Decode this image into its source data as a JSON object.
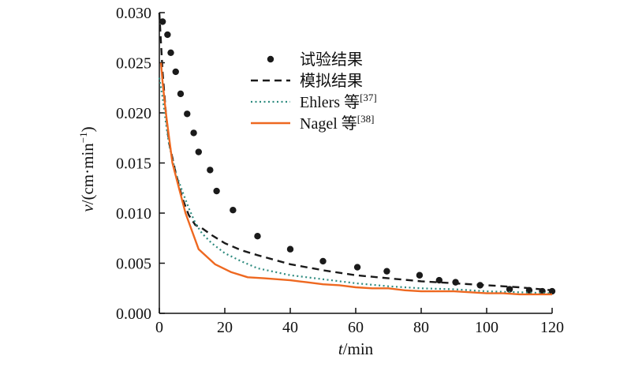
{
  "chart_data": {
    "type": "line",
    "xlabel": {
      "var": "t",
      "unit": "/min"
    },
    "ylabel": {
      "var": "v",
      "unit": "/(cm·min",
      "sup": "−1",
      "close": ")"
    },
    "xlim": [
      0,
      120
    ],
    "ylim": [
      0,
      0.03
    ],
    "xticks": [
      "0",
      "20",
      "40",
      "60",
      "80",
      "100",
      "120"
    ],
    "yticks": [
      "0.000",
      "0.005",
      "0.010",
      "0.015",
      "0.020",
      "0.025",
      "0.030"
    ],
    "grid": false,
    "legend_position": "top-center",
    "series": [
      {
        "name": "试验结果",
        "style": "markers",
        "color": "#1a1a1a",
        "x": [
          1,
          2.5,
          3.5,
          5,
          6.5,
          8.5,
          10.5,
          12,
          15.5,
          17.5,
          22.5,
          30,
          40,
          50,
          60.5,
          69.5,
          79.5,
          85.5,
          90.5,
          98,
          107,
          113,
          117,
          120
        ],
        "y": [
          0.0291,
          0.0278,
          0.026,
          0.0241,
          0.0219,
          0.0199,
          0.018,
          0.0161,
          0.0143,
          0.0122,
          0.0103,
          0.0077,
          0.0064,
          0.0052,
          0.0046,
          0.0042,
          0.0038,
          0.0033,
          0.0031,
          0.0028,
          0.0024,
          0.0023,
          0.0022,
          0.0022
        ]
      },
      {
        "name": "模拟结果",
        "style": "dashed",
        "color": "#1a1a1a",
        "x": [
          0,
          1,
          2,
          3,
          5,
          7,
          9,
          11,
          13,
          16,
          20,
          25,
          30,
          40,
          50,
          60,
          70,
          80,
          90,
          100,
          110,
          120
        ],
        "y": [
          0.03,
          0.024,
          0.02,
          0.017,
          0.014,
          0.0115,
          0.0098,
          0.0088,
          0.0085,
          0.0078,
          0.007,
          0.0063,
          0.0058,
          0.0049,
          0.0043,
          0.0038,
          0.0035,
          0.0032,
          0.003,
          0.0028,
          0.0026,
          0.0023
        ]
      },
      {
        "name": "Ehlers 等",
        "sup": "[37]",
        "style": "dotted",
        "color": "#2e8b7f",
        "x": [
          0,
          1,
          2,
          3,
          5,
          7,
          9,
          11,
          13,
          16,
          20,
          25,
          30,
          40,
          50,
          60,
          70,
          80,
          90,
          100,
          110,
          120
        ],
        "y": [
          0.0235,
          0.0215,
          0.019,
          0.0168,
          0.014,
          0.0122,
          0.0105,
          0.009,
          0.008,
          0.007,
          0.006,
          0.0052,
          0.0045,
          0.0038,
          0.0034,
          0.003,
          0.0027,
          0.0025,
          0.0024,
          0.0022,
          0.0021,
          0.002
        ]
      },
      {
        "name": "Nagel 等",
        "sup": "[38]",
        "style": "solid",
        "color": "#ee6820",
        "x": [
          0.5,
          1,
          2,
          3,
          4,
          6,
          8,
          10,
          12,
          17,
          22,
          27,
          32,
          40,
          45,
          50,
          55,
          60,
          65,
          70,
          75,
          80,
          85,
          90,
          95,
          100,
          105,
          110,
          115,
          120
        ],
        "y": [
          0.025,
          0.023,
          0.02,
          0.0175,
          0.015,
          0.0125,
          0.01,
          0.0082,
          0.0064,
          0.0049,
          0.0041,
          0.0036,
          0.0035,
          0.0033,
          0.0031,
          0.0029,
          0.0028,
          0.0026,
          0.0025,
          0.0025,
          0.0023,
          0.0022,
          0.0022,
          0.0022,
          0.0021,
          0.002,
          0.002,
          0.0019,
          0.0019,
          0.0019
        ]
      }
    ]
  }
}
